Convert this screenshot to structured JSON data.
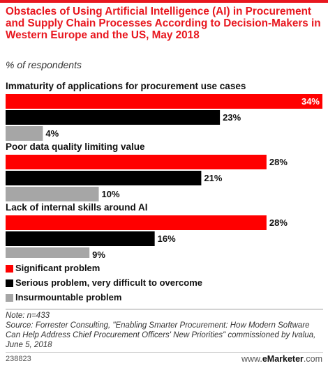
{
  "header": {
    "title": "Obstacles of Using Artificial Intelligence (AI) in Procurement and Supply Chain Processes According to Decision-Makers in Western Europe and the US, May 2018",
    "subtitle": "% of respondents"
  },
  "colors": {
    "accent": "#E8171F",
    "significant": "#FF0000",
    "serious": "#000000",
    "insurmountable": "#A6A6A6"
  },
  "chart_data": {
    "type": "bar",
    "orientation": "horizontal",
    "categories": [
      "Immaturity of applications for procurement use cases",
      "Poor data quality limiting value",
      "Lack of internal skills around AI"
    ],
    "series": [
      {
        "name": "Significant problem",
        "values": [
          34,
          28,
          28
        ]
      },
      {
        "name": "Serious problem, very difficult to overcome",
        "values": [
          23,
          21,
          16
        ]
      },
      {
        "name": "Insurmountable problem",
        "values": [
          4,
          10,
          9
        ]
      }
    ],
    "value_suffix": "%",
    "xlim": [
      0,
      34
    ],
    "grid": false,
    "legend": "bottom"
  },
  "notes": {
    "note": "Note: n=433",
    "source": "Source: Forrester Consulting, \"Enabling Smarter Procurement: How Modern Software Can Help Address Chief Procurement Officers' New Priorities\" commissioned by Ivalua, June 5, 2018"
  },
  "footer": {
    "chart_id": "238823",
    "brand_prefix": "www.",
    "brand_name": "eMarketer",
    "brand_suffix": ".com"
  }
}
